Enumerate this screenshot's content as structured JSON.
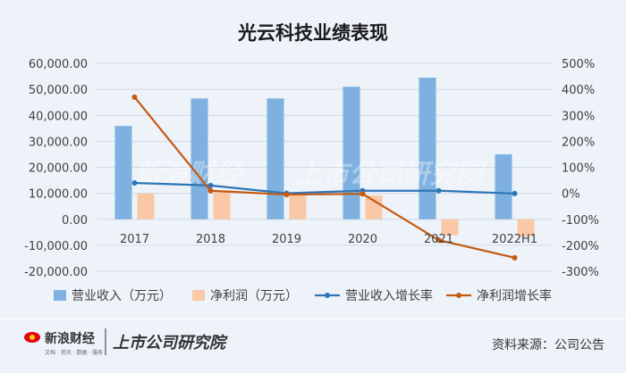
{
  "chart_data": {
    "type": "bar",
    "title": "光云科技业绩表现",
    "categories": [
      "2017",
      "2018",
      "2019",
      "2020",
      "2021",
      "2022H1"
    ],
    "series": [
      {
        "name": "营业收入（万元）",
        "type": "bar",
        "axis": "left",
        "color": "#7fb1e0",
        "values": [
          35900,
          46500,
          46500,
          51000,
          54500,
          25000
        ]
      },
      {
        "name": "净利润（万元）",
        "type": "bar",
        "axis": "left",
        "color": "#f9c8a6",
        "values": [
          10000,
          10500,
          10000,
          9200,
          -6200,
          -6600
        ]
      },
      {
        "name": "营业收入增长率",
        "type": "line",
        "axis": "right",
        "color": "#2e75b6",
        "values": [
          40,
          30,
          0,
          10,
          10,
          -1
        ]
      },
      {
        "name": "净利润增长率",
        "type": "line",
        "axis": "right",
        "color": "#c55a11",
        "values": [
          370,
          10,
          -5,
          -2,
          -180,
          -248
        ]
      }
    ],
    "y_left": {
      "min": -20000,
      "max": 60000,
      "step": 10000,
      "tick_labels": [
        "-20,000.00",
        "-10,000.00",
        "0.00",
        "10,000.00",
        "20,000.00",
        "30,000.00",
        "40,000.00",
        "50,000.00",
        "60,000.00"
      ]
    },
    "y_right": {
      "min": -300,
      "max": 500,
      "step": 100,
      "tick_labels": [
        "-300%",
        "-200%",
        "-100%",
        "0%",
        "100%",
        "200%",
        "300%",
        "400%",
        "500%"
      ]
    },
    "legend_position": "bottom",
    "grid": true,
    "colors": {
      "background": "#eef3fa",
      "grid": "#cfd9e6",
      "axis_text": "#404040"
    }
  },
  "footer": {
    "brand": "新浪财经",
    "brand_sub": "文档 · 资讯 · 数据 · 服务",
    "institute": "上市公司研究院",
    "source": "资料来源：公司公告"
  },
  "watermark": {
    "brand": "新浪财经",
    "institute": "上市公司研究院"
  }
}
